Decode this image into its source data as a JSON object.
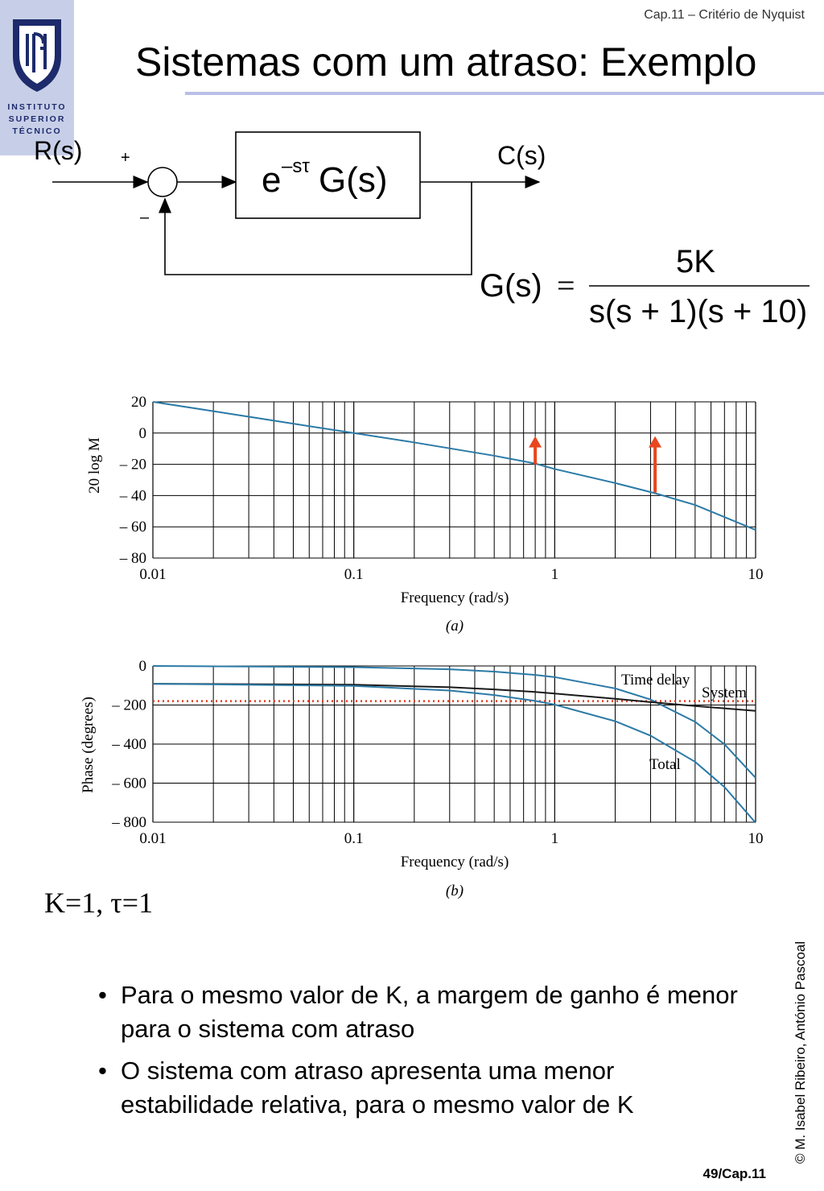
{
  "header": {
    "chapter": "Cap.11 – Critério de Nyquist"
  },
  "title": "Sistemas com um atraso: Exemplo",
  "logo": {
    "text": "INSTITUTO\nSUPERIOR\nTÉCNICO"
  },
  "block_diagram": {
    "input_label": "R(s)",
    "output_label": "C(s)",
    "plus_sign": "+",
    "minus_sign": "–",
    "block_e": "e",
    "block_exp": "–sτ",
    "block_g": "G(s)",
    "gs_lhs": "G(s)",
    "gs_equals": "=",
    "gs_numerator": "5K",
    "gs_denominator": "s(s + 1)(s + 10)"
  },
  "chart_data": [
    {
      "type": "line",
      "xlabel": "Frequency (rad/s)",
      "ylabel": "20 log M",
      "caption": "(a)",
      "x_scale": "log",
      "xlim": [
        0.01,
        10
      ],
      "ylim": [
        -80,
        20
      ],
      "xticks": [
        "0.01",
        "0.1",
        "1",
        "10"
      ],
      "yticks": [
        "20",
        "0",
        "– 20",
        "– 40",
        "– 60",
        "– 80"
      ],
      "grid": true,
      "series": [
        {
          "x": [
            0.01,
            0.02,
            0.05,
            0.1,
            0.2,
            0.5,
            0.8,
            1,
            2,
            3.16,
            5,
            10
          ],
          "y": [
            20,
            14,
            6,
            0,
            -6,
            -14.5,
            -19.5,
            -23,
            -32,
            -38.5,
            -46,
            -62
          ]
        }
      ],
      "arrows": [
        {
          "x": 0.8,
          "y_from": -20,
          "y_to": -2
        },
        {
          "x": 3.16,
          "y_from": -38,
          "y_to": -2
        }
      ]
    },
    {
      "type": "line",
      "xlabel": "Frequency (rad/s)",
      "ylabel": "Phase (degrees)",
      "caption": "(b)",
      "x_scale": "log",
      "xlim": [
        0.01,
        10
      ],
      "ylim": [
        -800,
        0
      ],
      "xticks": [
        "0.01",
        "0.1",
        "1",
        "10"
      ],
      "yticks": [
        "0",
        "– 200",
        "– 400",
        "– 600",
        "– 800"
      ],
      "grid": true,
      "reference_line": {
        "y": -180,
        "style": "dotted",
        "color": "#e03a1e"
      },
      "annotations": [
        "Time delay",
        "System",
        "Total"
      ],
      "series": [
        {
          "name": "Time delay",
          "x": [
            0.01,
            0.1,
            0.3,
            0.5,
            0.8,
            1,
            2,
            3,
            5,
            7,
            10
          ],
          "y": [
            0,
            -6,
            -17,
            -29,
            -46,
            -57,
            -115,
            -172,
            -286,
            -401,
            -573
          ]
        },
        {
          "name": "System",
          "x": [
            0.01,
            0.1,
            0.3,
            0.5,
            0.8,
            1,
            2,
            3,
            5,
            10
          ],
          "y": [
            -91,
            -96,
            -109,
            -120,
            -133,
            -141,
            -168,
            -185,
            -205,
            -230
          ]
        },
        {
          "name": "Total",
          "x": [
            0.01,
            0.1,
            0.3,
            0.5,
            0.8,
            1,
            2,
            3,
            5,
            7,
            10
          ],
          "y": [
            -91,
            -102,
            -126,
            -149,
            -179,
            -198,
            -283,
            -357,
            -491,
            -620,
            -803
          ]
        }
      ]
    }
  ],
  "colors": {
    "curve": "#2b7aa6",
    "system_curve": "#1a1a1a",
    "arrow": "#e8461e",
    "rule": "#b8bee8"
  },
  "params": "K=1, τ=1",
  "bullets": [
    "Para o mesmo valor de K, a margem de ganho é menor para o sistema com atraso",
    "O sistema com atraso apresenta uma menor estabilidade relativa, para o mesmo valor de K"
  ],
  "copyright": "© M. Isabel Ribeiro, António Pascoal",
  "page_number": "49/Cap.11"
}
